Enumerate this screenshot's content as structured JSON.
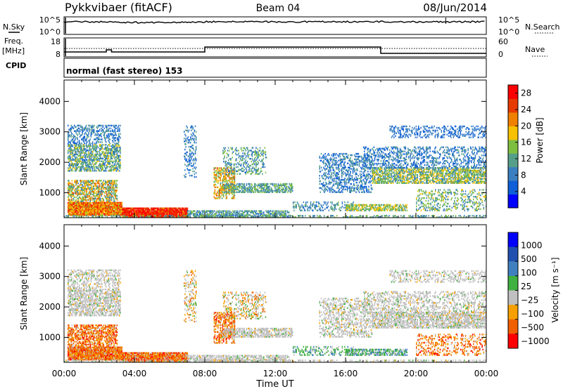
{
  "header": {
    "station": "Pykkvibaer (fitACF)",
    "beam": "Beam 04",
    "date": "08/Jun/2014"
  },
  "panels": {
    "nsky": {
      "left_label": "N.Sky",
      "right_label": "N.Search",
      "left_ticks": [
        "10^5",
        "10^0"
      ],
      "right_ticks": [
        "10^5",
        "10^0"
      ]
    },
    "freq": {
      "left_label_1": "Freq.",
      "left_label_2": "[MHz]",
      "right_label": "Nave",
      "left_ticks": [
        "18",
        "8"
      ],
      "right_ticks": [
        "60",
        "0"
      ]
    },
    "cpid": {
      "label": "CPID",
      "text": "normal (fast stereo) 153"
    }
  },
  "colors": {
    "power": [
      "#0000ff",
      "#0e5fd8",
      "#3a7fc0",
      "#559f8a",
      "#7fbf40",
      "#f7c000",
      "#f08000",
      "#e63a00",
      "#ff0000"
    ],
    "velocity": [
      "#ff0000",
      "#f06000",
      "#f5a000",
      "#c0c0c0",
      "#40b040",
      "#4080c0",
      "#2050b0",
      "#0000ff"
    ],
    "ground_scatter": "#c0c0c0"
  },
  "chart_data": [
    {
      "type": "heatmap",
      "name": "power",
      "xlabel": "",
      "ylabel": "Slant Range [km]",
      "x_ticks": [
        "00:00",
        "04:00",
        "08:00",
        "12:00",
        "16:00",
        "20:00",
        "00:00"
      ],
      "xlim": [
        0,
        24
      ],
      "y_ticks": [
        "1000",
        "2000",
        "3000",
        "4000"
      ],
      "y_tick_values": [
        1000,
        2000,
        3000,
        4000
      ],
      "ylim": [
        180,
        4700
      ],
      "colorbar_label": "Power [dB]",
      "colorbar_ticks": [
        "4",
        "8",
        "12",
        "16",
        "20",
        "24",
        "28"
      ],
      "colorbar_tick_values": [
        4,
        8,
        12,
        16,
        20,
        24,
        28
      ],
      "colorbar_range": [
        0,
        30
      ],
      "grid": false
    },
    {
      "type": "heatmap",
      "name": "velocity",
      "xlabel": "Time UT",
      "ylabel": "Slant Range [km]",
      "x_ticks": [
        "00:00",
        "04:00",
        "08:00",
        "12:00",
        "16:00",
        "20:00",
        "00:00"
      ],
      "xlim": [
        0,
        24
      ],
      "y_ticks": [
        "1000",
        "2000",
        "3000",
        "4000"
      ],
      "y_tick_values": [
        1000,
        2000,
        3000,
        4000
      ],
      "ylim": [
        180,
        4700
      ],
      "colorbar_label": "Velocity [m s⁻¹]",
      "colorbar_ticks": [
        "1000",
        "500",
        "100",
        "25",
        "−25",
        "−100",
        "−500",
        "−1000"
      ],
      "grid": false
    }
  ]
}
